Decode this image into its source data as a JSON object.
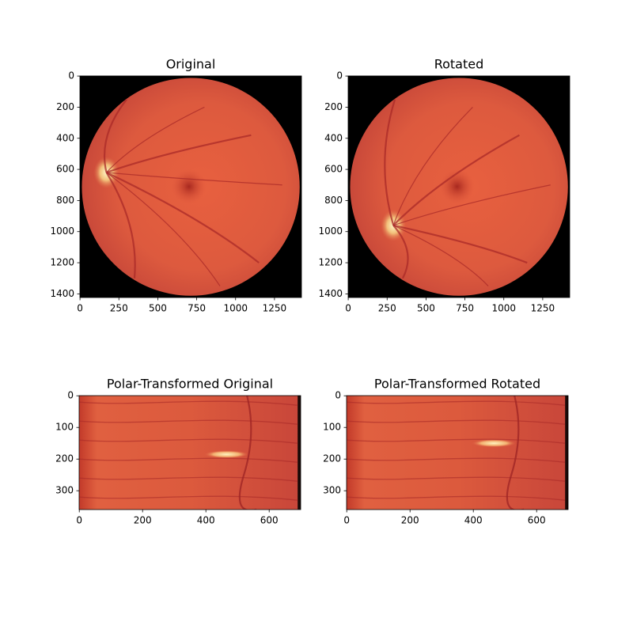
{
  "chart_data": [
    {
      "type": "image",
      "title": "Original",
      "xlim": [
        -0.5,
        1423.5
      ],
      "ylim": [
        1423.5,
        -0.5
      ],
      "xticks": [
        0,
        250,
        500,
        750,
        1000,
        1250
      ],
      "yticks": [
        0,
        200,
        400,
        600,
        800,
        1000,
        1200,
        1400
      ]
    },
    {
      "type": "image",
      "title": "Rotated",
      "xlim": [
        -0.5,
        1423.5
      ],
      "ylim": [
        1423.5,
        -0.5
      ],
      "xticks": [
        0,
        250,
        500,
        750,
        1000,
        1250
      ],
      "yticks": [
        0,
        200,
        400,
        600,
        800,
        1000,
        1200,
        1400
      ]
    },
    {
      "type": "image",
      "title": "Polar-Transformed Original",
      "xlim": [
        -0.5,
        699.5
      ],
      "ylim": [
        359.5,
        -0.5
      ],
      "xticks": [
        0,
        200,
        400,
        600
      ],
      "yticks": [
        0,
        100,
        200,
        300
      ]
    },
    {
      "type": "image",
      "title": "Polar-Transformed Rotated",
      "xlim": [
        -0.5,
        699.5
      ],
      "ylim": [
        359.5,
        -0.5
      ],
      "xticks": [
        0,
        200,
        400,
        600
      ],
      "yticks": [
        0,
        100,
        200,
        300
      ]
    }
  ]
}
